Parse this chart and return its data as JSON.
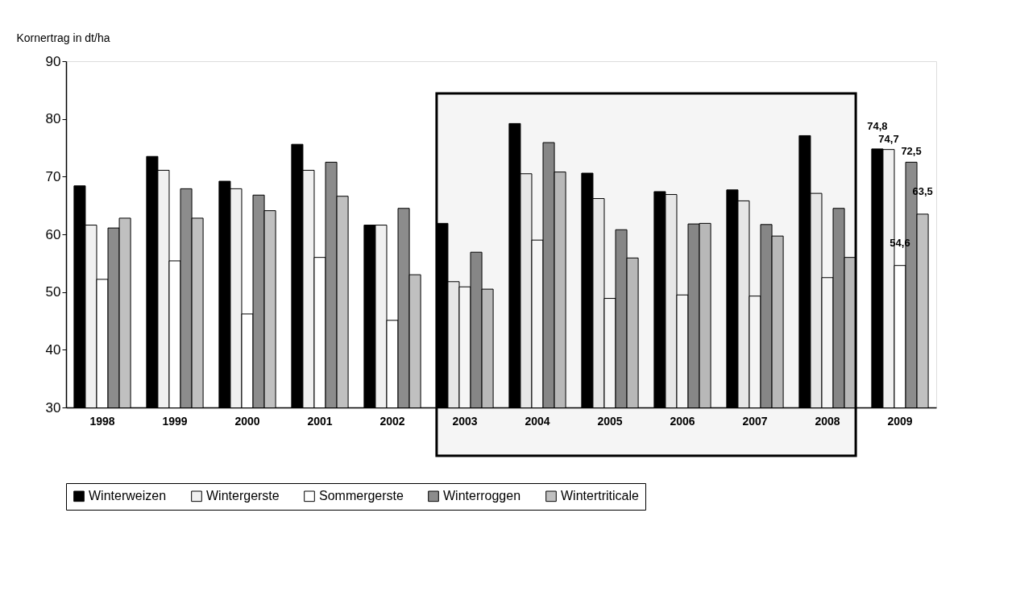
{
  "chart_data": {
    "type": "bar",
    "ylabel": "Kornertrag in dt/ha",
    "categories": [
      "1998",
      "1999",
      "2000",
      "2001",
      "2002",
      "2003",
      "2004",
      "2005",
      "2006",
      "2007",
      "2008",
      "2009"
    ],
    "series": [
      {
        "name": "Winterweizen",
        "color": "#000000",
        "values": [
          68.4,
          73.5,
          69.2,
          75.6,
          61.6,
          61.9,
          79.2,
          70.6,
          67.4,
          67.7,
          77.1,
          74.8
        ],
        "value_labels": [
          null,
          null,
          null,
          null,
          null,
          null,
          null,
          null,
          null,
          null,
          null,
          "74,8"
        ]
      },
      {
        "name": "Wintergerste",
        "color": "#f0f0f0",
        "values": [
          61.6,
          71.1,
          67.9,
          71.1,
          61.6,
          51.8,
          70.5,
          66.2,
          66.9,
          65.8,
          67.1,
          74.7
        ],
        "value_labels": [
          null,
          null,
          null,
          null,
          null,
          null,
          null,
          null,
          null,
          null,
          null,
          "74,7"
        ]
      },
      {
        "name": "Sommergerste",
        "color": "#ffffff",
        "values": [
          52.2,
          55.4,
          46.2,
          56.0,
          45.1,
          50.9,
          59.0,
          48.9,
          49.5,
          49.3,
          52.5,
          54.6
        ],
        "value_labels": [
          null,
          null,
          null,
          null,
          null,
          null,
          null,
          null,
          null,
          null,
          null,
          "54,6"
        ]
      },
      {
        "name": "Winterroggen",
        "color": "#8c8c8c",
        "values": [
          61.1,
          67.9,
          66.8,
          72.5,
          64.5,
          56.9,
          75.9,
          60.8,
          61.8,
          61.7,
          64.5,
          72.5
        ],
        "value_labels": [
          null,
          null,
          null,
          null,
          null,
          null,
          null,
          null,
          null,
          null,
          null,
          "72,5"
        ]
      },
      {
        "name": "Wintertriticale",
        "color": "#c0c0c0",
        "values": [
          62.8,
          62.8,
          64.1,
          66.6,
          53.0,
          50.5,
          70.8,
          55.9,
          61.9,
          59.7,
          56.0,
          63.5
        ],
        "value_labels": [
          null,
          null,
          null,
          null,
          null,
          null,
          null,
          null,
          null,
          null,
          null,
          "63,5"
        ]
      }
    ],
    "ylim": [
      30,
      90
    ],
    "yticks": [
      30,
      40,
      50,
      60,
      70,
      80,
      90
    ],
    "bands": [
      {
        "axis": "x",
        "from": "2003",
        "to": "2008",
        "color": "#000000"
      }
    ],
    "grid": false,
    "legend": "bottom"
  }
}
